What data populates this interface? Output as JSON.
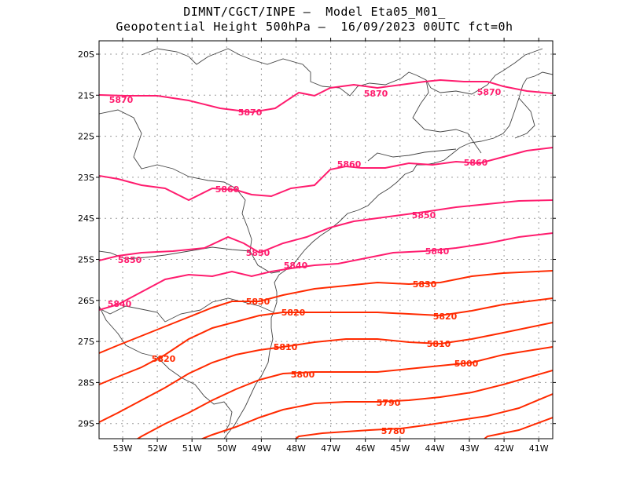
{
  "title_line1": "DIMNT/CGCT/INPE –  Model Eta05_M01_",
  "title_line2": "Geopotential Height 500hPa –  16/09/2023 00UTC fct=0h",
  "colors": {
    "pink": "#ff1c6e",
    "red": "#ff2a00",
    "border": "#444444",
    "grid": "#9a9a9a"
  },
  "lat_ticks": [
    "20S",
    "21S",
    "22S",
    "23S",
    "24S",
    "25S",
    "26S",
    "27S",
    "28S",
    "29S"
  ],
  "lon_ticks": [
    "53W",
    "52W",
    "51W",
    "50W",
    "49W",
    "48W",
    "47W",
    "46W",
    "45W",
    "44W",
    "43W",
    "42W",
    "41W"
  ],
  "contours": [
    {
      "value": "5870",
      "color": "pink",
      "labels": [
        "5870",
        "5870",
        "5870",
        "5870"
      ]
    },
    {
      "value": "5860",
      "color": "pink",
      "labels": [
        "5860",
        "5860",
        "5860"
      ]
    },
    {
      "value": "5850",
      "color": "pink",
      "labels": [
        "5850",
        "5850",
        "5850"
      ]
    },
    {
      "value": "5840",
      "color": "pink",
      "labels": [
        "5840",
        "5840",
        "5840"
      ]
    },
    {
      "value": "5830",
      "color": "red",
      "labels": [
        "5830",
        "5830"
      ]
    },
    {
      "value": "5820",
      "color": "red",
      "labels": [
        "5820",
        "5820",
        "5820"
      ]
    },
    {
      "value": "5810",
      "color": "red",
      "labels": [
        "5810",
        "5810"
      ]
    },
    {
      "value": "5800",
      "color": "red",
      "labels": [
        "5800",
        "5800"
      ]
    },
    {
      "value": "5790",
      "color": "red",
      "labels": [
        "5790"
      ]
    },
    {
      "value": "5780",
      "color": "red",
      "labels": [
        "5780"
      ]
    }
  ]
}
